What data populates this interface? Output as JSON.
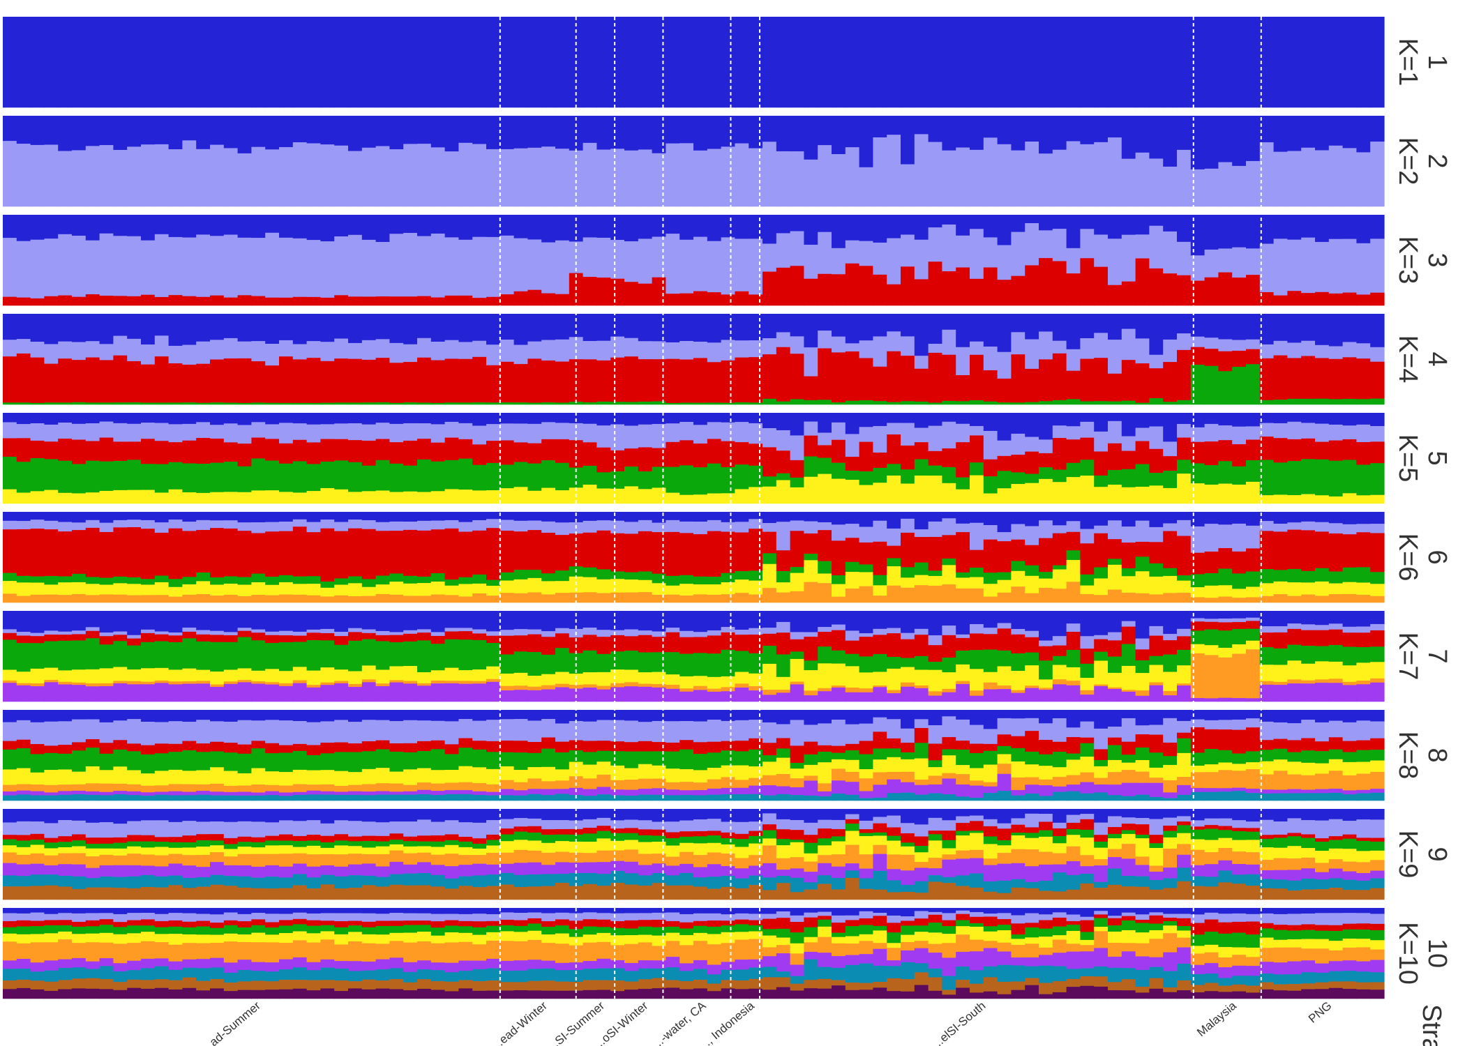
{
  "chart_data": {
    "type": "stacked-bar",
    "title": "",
    "facet_strip_label": "Stratum",
    "n_individuals": 100,
    "palette": [
      "#2424d6",
      "#9b9bf7",
      "#dd0000",
      "#0aa80a",
      "#fff21a",
      "#ff9a22",
      "#a13bf2",
      "#0a8cb3",
      "#b8641c",
      "#5c0a5c"
    ],
    "populations": [
      {
        "label": "...ad-Summer",
        "start": 0,
        "end": 36
      },
      {
        "label": "...ead-Winter",
        "start": 36,
        "end": 41.5
      },
      {
        "label": "...SI-Summer",
        "start": 41.5,
        "end": 44.3
      },
      {
        "label": "...oSI-Winter",
        "start": 44.3,
        "end": 47.8
      },
      {
        "label": "...-water, CA",
        "start": 47.8,
        "end": 52.7
      },
      {
        "label": "..., Indonesia",
        "start": 52.7,
        "end": 54.8
      },
      {
        "label": "...elSI-South",
        "start": 54.8,
        "end": 86.2
      },
      {
        "label": "Malaysia",
        "start": 86.2,
        "end": 91.1
      },
      {
        "label": "PNG",
        "start": 91.1,
        "end": 100
      }
    ],
    "panels": [
      {
        "k": 1,
        "label": "K=1",
        "index": "1",
        "pop_props": [
          [
            1
          ],
          [
            1
          ],
          [
            1
          ],
          [
            1
          ],
          [
            1
          ],
          [
            1
          ],
          [
            1
          ],
          [
            1
          ],
          [
            1
          ]
        ]
      },
      {
        "k": 2,
        "label": "K=2",
        "index": "2",
        "pop_props": [
          [
            0.34,
            0.66
          ],
          [
            0.34,
            0.66
          ],
          [
            0.35,
            0.65
          ],
          [
            0.36,
            0.64
          ],
          [
            0.35,
            0.65
          ],
          [
            0.34,
            0.66
          ],
          [
            0.35,
            0.65
          ],
          [
            0.55,
            0.45
          ],
          [
            0.36,
            0.64
          ]
        ]
      },
      {
        "k": 3,
        "label": "K=3",
        "index": "3",
        "pop_props": [
          [
            0.25,
            0.65,
            0.1
          ],
          [
            0.25,
            0.6,
            0.15
          ],
          [
            0.25,
            0.4,
            0.35
          ],
          [
            0.25,
            0.47,
            0.28
          ],
          [
            0.25,
            0.6,
            0.15
          ],
          [
            0.27,
            0.58,
            0.15
          ],
          [
            0.22,
            0.42,
            0.36
          ],
          [
            0.4,
            0.28,
            0.32
          ],
          [
            0.27,
            0.6,
            0.13
          ]
        ]
      },
      {
        "k": 4,
        "label": "K=4",
        "index": "4",
        "pop_props": [
          [
            0.3,
            0.2,
            0.48,
            0.02
          ],
          [
            0.3,
            0.22,
            0.46,
            0.02
          ],
          [
            0.28,
            0.22,
            0.47,
            0.03
          ],
          [
            0.28,
            0.22,
            0.47,
            0.03
          ],
          [
            0.3,
            0.2,
            0.48,
            0.02
          ],
          [
            0.28,
            0.2,
            0.5,
            0.02
          ],
          [
            0.28,
            0.22,
            0.46,
            0.04
          ],
          [
            0.28,
            0.12,
            0.2,
            0.4
          ],
          [
            0.32,
            0.16,
            0.46,
            0.06
          ]
        ]
      },
      {
        "k": 5,
        "label": "K=5",
        "index": "5",
        "pop_props": [
          [
            0.12,
            0.18,
            0.24,
            0.32,
            0.14
          ],
          [
            0.12,
            0.2,
            0.24,
            0.28,
            0.16
          ],
          [
            0.12,
            0.22,
            0.28,
            0.2,
            0.18
          ],
          [
            0.14,
            0.26,
            0.22,
            0.22,
            0.16
          ],
          [
            0.12,
            0.2,
            0.28,
            0.3,
            0.1
          ],
          [
            0.12,
            0.2,
            0.26,
            0.24,
            0.18
          ],
          [
            0.18,
            0.22,
            0.22,
            0.14,
            0.24
          ],
          [
            0.14,
            0.18,
            0.22,
            0.22,
            0.24
          ],
          [
            0.12,
            0.18,
            0.24,
            0.36,
            0.1
          ]
        ]
      },
      {
        "k": 6,
        "label": "K=6",
        "index": "6",
        "pop_props": [
          [
            0.1,
            0.1,
            0.52,
            0.08,
            0.12,
            0.08
          ],
          [
            0.1,
            0.12,
            0.44,
            0.1,
            0.14,
            0.1
          ],
          [
            0.1,
            0.12,
            0.42,
            0.1,
            0.16,
            0.1
          ],
          [
            0.1,
            0.12,
            0.44,
            0.1,
            0.14,
            0.1
          ],
          [
            0.1,
            0.12,
            0.48,
            0.1,
            0.12,
            0.08
          ],
          [
            0.1,
            0.12,
            0.44,
            0.1,
            0.14,
            0.1
          ],
          [
            0.14,
            0.16,
            0.3,
            0.1,
            0.16,
            0.14
          ],
          [
            0.16,
            0.28,
            0.22,
            0.16,
            0.12,
            0.06
          ],
          [
            0.12,
            0.1,
            0.42,
            0.14,
            0.14,
            0.08
          ]
        ]
      },
      {
        "k": 7,
        "label": "K=7",
        "index": "7",
        "pop_props": [
          [
            0.22,
            0.04,
            0.08,
            0.3,
            0.14,
            0.03,
            0.19
          ],
          [
            0.2,
            0.06,
            0.18,
            0.24,
            0.14,
            0.04,
            0.14
          ],
          [
            0.2,
            0.08,
            0.18,
            0.2,
            0.14,
            0.04,
            0.16
          ],
          [
            0.22,
            0.06,
            0.18,
            0.22,
            0.14,
            0.04,
            0.14
          ],
          [
            0.2,
            0.06,
            0.2,
            0.26,
            0.12,
            0.04,
            0.12
          ],
          [
            0.2,
            0.06,
            0.18,
            0.24,
            0.14,
            0.04,
            0.14
          ],
          [
            0.2,
            0.08,
            0.2,
            0.16,
            0.18,
            0.04,
            0.14
          ],
          [
            0.08,
            0.04,
            0.08,
            0.16,
            0.1,
            0.5,
            0.04
          ],
          [
            0.16,
            0.06,
            0.16,
            0.2,
            0.18,
            0.04,
            0.2
          ]
        ]
      },
      {
        "k": 8,
        "label": "K=8",
        "index": "8",
        "pop_props": [
          [
            0.12,
            0.24,
            0.1,
            0.2,
            0.16,
            0.08,
            0.04,
            0.06
          ],
          [
            0.12,
            0.22,
            0.12,
            0.18,
            0.14,
            0.1,
            0.06,
            0.06
          ],
          [
            0.12,
            0.2,
            0.12,
            0.14,
            0.16,
            0.12,
            0.08,
            0.06
          ],
          [
            0.12,
            0.22,
            0.12,
            0.16,
            0.14,
            0.12,
            0.06,
            0.06
          ],
          [
            0.12,
            0.22,
            0.12,
            0.18,
            0.14,
            0.1,
            0.06,
            0.06
          ],
          [
            0.12,
            0.22,
            0.12,
            0.16,
            0.14,
            0.1,
            0.08,
            0.06
          ],
          [
            0.14,
            0.18,
            0.12,
            0.12,
            0.16,
            0.1,
            0.12,
            0.06
          ],
          [
            0.1,
            0.1,
            0.24,
            0.14,
            0.08,
            0.2,
            0.04,
            0.1
          ],
          [
            0.12,
            0.2,
            0.12,
            0.12,
            0.14,
            0.18,
            0.04,
            0.08
          ]
        ]
      },
      {
        "k": 9,
        "label": "K=9",
        "index": "9",
        "pop_props": [
          [
            0.14,
            0.16,
            0.06,
            0.06,
            0.08,
            0.12,
            0.12,
            0.12,
            0.14
          ],
          [
            0.12,
            0.1,
            0.06,
            0.08,
            0.12,
            0.12,
            0.12,
            0.12,
            0.16
          ],
          [
            0.12,
            0.1,
            0.06,
            0.08,
            0.12,
            0.12,
            0.12,
            0.12,
            0.16
          ],
          [
            0.12,
            0.1,
            0.06,
            0.08,
            0.12,
            0.12,
            0.12,
            0.12,
            0.16
          ],
          [
            0.12,
            0.12,
            0.06,
            0.08,
            0.12,
            0.12,
            0.12,
            0.12,
            0.14
          ],
          [
            0.12,
            0.12,
            0.06,
            0.08,
            0.12,
            0.12,
            0.12,
            0.12,
            0.14
          ],
          [
            0.1,
            0.1,
            0.08,
            0.06,
            0.14,
            0.12,
            0.14,
            0.12,
            0.14
          ],
          [
            0.12,
            0.08,
            0.04,
            0.1,
            0.12,
            0.14,
            0.12,
            0.12,
            0.16
          ],
          [
            0.12,
            0.18,
            0.04,
            0.1,
            0.12,
            0.12,
            0.1,
            0.1,
            0.12
          ]
        ]
      },
      {
        "k": 10,
        "label": "K=10",
        "index": "10",
        "pop_props": [
          [
            0.06,
            0.08,
            0.06,
            0.08,
            0.1,
            0.2,
            0.1,
            0.12,
            0.1,
            0.1
          ],
          [
            0.06,
            0.08,
            0.06,
            0.08,
            0.1,
            0.2,
            0.1,
            0.12,
            0.1,
            0.1
          ],
          [
            0.06,
            0.08,
            0.08,
            0.08,
            0.1,
            0.18,
            0.1,
            0.12,
            0.1,
            0.1
          ],
          [
            0.06,
            0.08,
            0.08,
            0.08,
            0.1,
            0.18,
            0.1,
            0.12,
            0.1,
            0.1
          ],
          [
            0.06,
            0.08,
            0.06,
            0.08,
            0.1,
            0.2,
            0.1,
            0.12,
            0.1,
            0.1
          ],
          [
            0.06,
            0.08,
            0.06,
            0.08,
            0.1,
            0.2,
            0.1,
            0.12,
            0.1,
            0.1
          ],
          [
            0.06,
            0.06,
            0.08,
            0.08,
            0.1,
            0.14,
            0.14,
            0.14,
            0.1,
            0.1
          ],
          [
            0.06,
            0.08,
            0.14,
            0.14,
            0.1,
            0.12,
            0.1,
            0.1,
            0.08,
            0.08
          ],
          [
            0.06,
            0.12,
            0.06,
            0.1,
            0.1,
            0.14,
            0.12,
            0.12,
            0.08,
            0.1
          ]
        ]
      }
    ]
  }
}
